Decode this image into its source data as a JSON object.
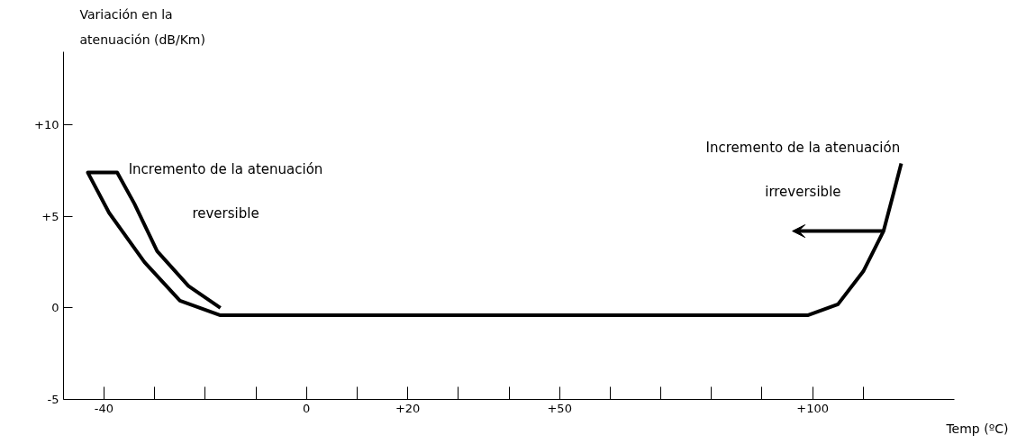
{
  "chart_data": {
    "type": "line",
    "ylabel": "Variación en la\natenuación (dB/Km)",
    "xlabel": "Temp (ºC)",
    "xlim": [
      -48,
      128
    ],
    "ylim": [
      -5,
      14
    ],
    "xticks": [
      {
        "value": -40,
        "label": "-40"
      },
      {
        "value": -30,
        "label": null
      },
      {
        "value": -20,
        "label": null
      },
      {
        "value": -10,
        "label": null
      },
      {
        "value": 0,
        "label": "0"
      },
      {
        "value": 10,
        "label": null
      },
      {
        "value": 20,
        "label": "+20"
      },
      {
        "value": 30,
        "label": null
      },
      {
        "value": 40,
        "label": null
      },
      {
        "value": 50,
        "label": "+50"
      },
      {
        "value": 60,
        "label": null
      },
      {
        "value": 70,
        "label": null
      },
      {
        "value": 80,
        "label": null
      },
      {
        "value": 90,
        "label": null
      },
      {
        "value": 100,
        "label": "+100"
      },
      {
        "value": 110,
        "label": null
      }
    ],
    "yticks": [
      {
        "value": -5,
        "label": "-5"
      },
      {
        "value": 0,
        "label": "0"
      },
      {
        "value": 5,
        "label": "+5"
      },
      {
        "value": 10,
        "label": "+10"
      }
    ],
    "grid": false,
    "marker": "none",
    "line_style": "solid",
    "series": [
      {
        "color": "#000000",
        "x": [
          -17,
          -23.3,
          -29.5,
          -34,
          -37.4,
          -43.2,
          -39,
          -32,
          -25,
          -17,
          99,
          105,
          110,
          114,
          116,
          117.5
        ],
        "values": [
          0,
          1.2,
          3.1,
          5.7,
          7.4,
          7.4,
          5.2,
          2.5,
          0.4,
          -0.4,
          -0.4,
          0.2,
          2,
          4.2,
          6.3,
          7.9
        ]
      }
    ],
    "annotations": [
      "Incremento de la atenuación",
      "reversible",
      "Incremento de la atenuación",
      "irreversible"
    ]
  }
}
